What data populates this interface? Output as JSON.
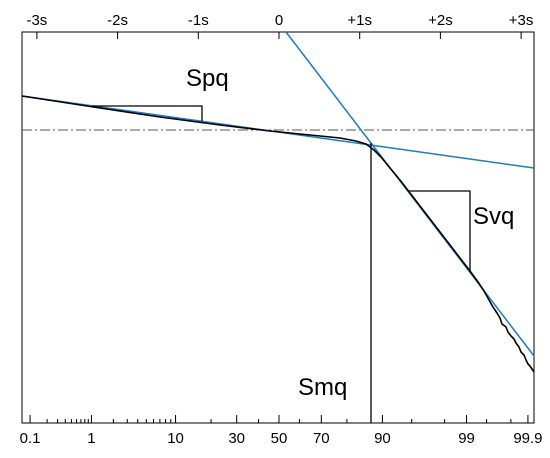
{
  "chart_data": {
    "type": "line",
    "title": "",
    "top_axis": {
      "labels": [
        "-3s",
        "-2s",
        "-1s",
        "0",
        "+1s",
        "+2s",
        "+3s"
      ],
      "sigma": [
        -3,
        -2,
        -1,
        0,
        1,
        2,
        3
      ]
    },
    "bottom_axis": {
      "labels": [
        "0.1",
        "1",
        "10",
        "30",
        "50",
        "70",
        "90",
        "99",
        "99.9"
      ],
      "percent": [
        0.1,
        1,
        10,
        30,
        50,
        70,
        90,
        99,
        99.9
      ]
    },
    "annotations": {
      "plateau_slope": "Spq",
      "valley_slope": "Svq",
      "material_ratio": "Smq"
    },
    "plateau_line_color": "#1f7bc4",
    "curve_color": "#000000",
    "reference_line_style": "dash-dot",
    "intersection_sigma": 1.28
  }
}
